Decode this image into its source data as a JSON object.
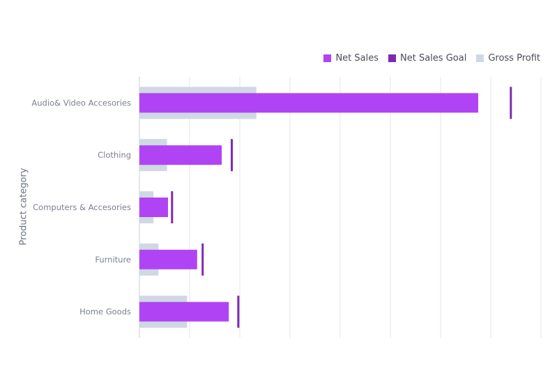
{
  "legend": [
    {
      "label": "Net Sales",
      "color": "#B044F5"
    },
    {
      "label": "Net Sales Goal",
      "color": "#7E2AB0"
    },
    {
      "label": "Gross Profit",
      "color": "#CFD8E3"
    }
  ],
  "chart_data": {
    "type": "bar",
    "orientation": "horizontal",
    "ylabel": "Product category",
    "xlabel": "",
    "categories": [
      "Audio& Video Accesories",
      "Clothing",
      "Computers & Accesories",
      "Furniture",
      "Home Goods"
    ],
    "series": [
      {
        "name": "Net Sales",
        "values": [
          67.5,
          16.4,
          5.7,
          11.5,
          17.8
        ],
        "color": "#B044F5"
      },
      {
        "name": "Net Sales Goal",
        "values": [
          74.0,
          18.4,
          6.5,
          12.6,
          19.7
        ],
        "color": "#7E2AB0"
      },
      {
        "name": "Gross Profit",
        "values": [
          23.3,
          5.5,
          2.8,
          3.8,
          9.5
        ],
        "color": "#CFD8E3"
      }
    ],
    "xlim": [
      0,
      80
    ],
    "grid": true,
    "gridlines": 8,
    "legend_position": "top-right"
  }
}
